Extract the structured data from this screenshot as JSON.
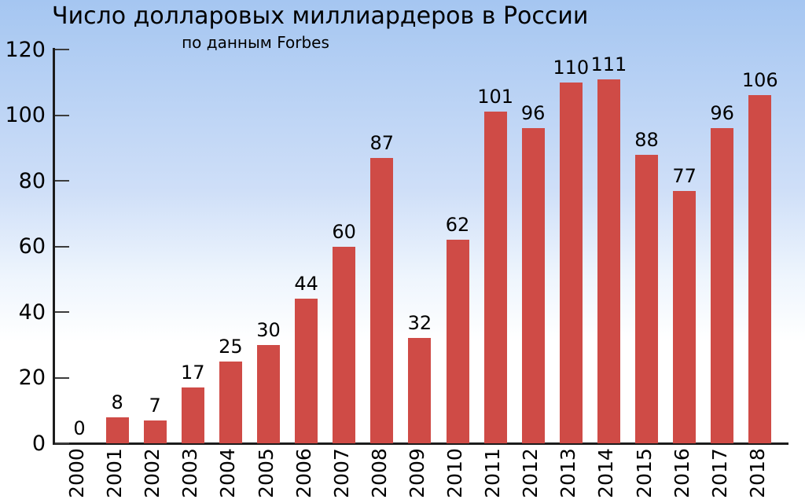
{
  "chart_data": {
    "type": "bar",
    "title": "Число долларовых миллиардеров в России",
    "subtitle": "по данным Forbes",
    "categories": [
      "2000",
      "2001",
      "2002",
      "2003",
      "2004",
      "2005",
      "2006",
      "2007",
      "2008",
      "2009",
      "2010",
      "2011",
      "2012",
      "2013",
      "2014",
      "2015",
      "2016",
      "2017",
      "2018"
    ],
    "values": [
      0,
      8,
      7,
      17,
      25,
      30,
      44,
      60,
      87,
      32,
      62,
      101,
      96,
      110,
      111,
      88,
      77,
      96,
      106
    ],
    "xlabel": "",
    "ylabel": "",
    "ylim": [
      0,
      120
    ],
    "yticks": [
      0,
      20,
      40,
      60,
      80,
      100,
      120
    ],
    "grid": false,
    "legend": "none",
    "value_labels_shown": true,
    "x_tick_label_rotation_deg": 90
  },
  "colors": {
    "bar": "#cf4b46",
    "text": "#000000",
    "axis": "#1c1c1c",
    "tick": "#3c3c3c",
    "background_top": "#a5c6f1",
    "background_upper_mid": "#cfdff8",
    "background_lower_mid": "#eef5fd",
    "background_bottom": "#ffffff"
  }
}
